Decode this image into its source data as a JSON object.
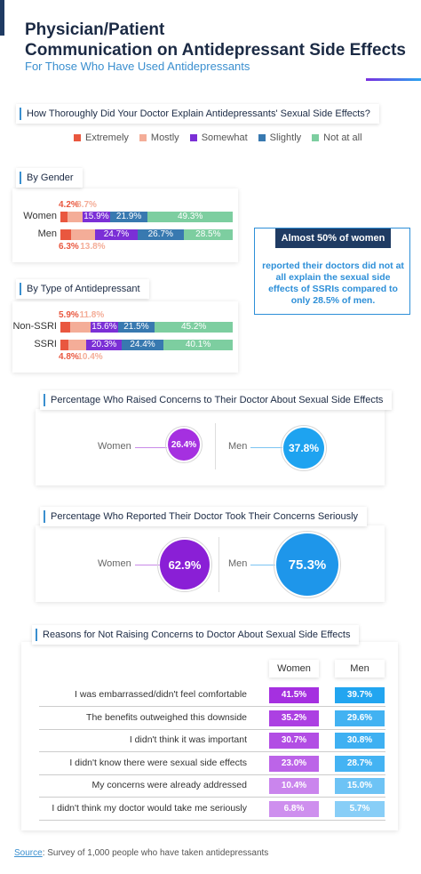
{
  "header": {
    "title_line1": "Physician/Patient",
    "title_line2": "Communication on Antidepressant Side Effects",
    "subtitle": "For Those Who Have Used Antidepressants"
  },
  "colors": {
    "extremely": "#e9573f",
    "mostly": "#f4ad98",
    "somewhat": "#7b2fd6",
    "slightly": "#3879b0",
    "not_at_all": "#7dcea0",
    "women": "#a530e0",
    "men": "#1ea3f0"
  },
  "section1": {
    "label": "How Thoroughly Did Your Doctor Explain Antidepressants' Sexual Side Effects?"
  },
  "legend": [
    "Extremely",
    "Mostly",
    "Somewhat",
    "Slightly",
    "Not at all"
  ],
  "by_gender_label": "By Gender",
  "by_type_label": "By Type of Antidepressant",
  "callout": {
    "head": "Almost 50% of women",
    "body": "reported their doctors did not at all explain the sexual side effects of SSRIs compared to only 28.5% of men."
  },
  "raised": {
    "label": "Percentage Who Raised Concerns to Their Doctor About Sexual Side Effects",
    "women_label": "Women",
    "men_label": "Men",
    "women_value": "26.4%",
    "men_value": "37.8%"
  },
  "serious": {
    "label": "Percentage Who Reported Their Doctor Took Their Concerns Seriously",
    "women_label": "Women",
    "men_label": "Men",
    "women_value": "62.9%",
    "men_value": "75.3%"
  },
  "reasons": {
    "label": "Reasons for Not Raising Concerns to Doctor About Sexual Side Effects",
    "women_head": "Women",
    "men_head": "Men",
    "rows": [
      {
        "reason": "I was embarrassed/didn't feel comfortable",
        "women": "41.5%",
        "men": "39.7%"
      },
      {
        "reason": "The benefits outweighed this downside",
        "women": "35.2%",
        "men": "29.6%"
      },
      {
        "reason": "I didn't think it was important",
        "women": "30.7%",
        "men": "30.8%"
      },
      {
        "reason": "I didn't know there were sexual side effects",
        "women": "23.0%",
        "men": "28.7%"
      },
      {
        "reason": "My concerns were already addressed",
        "women": "10.4%",
        "men": "15.0%"
      },
      {
        "reason": "I didn't think my doctor would take me seriously",
        "women": "6.8%",
        "men": "5.7%"
      }
    ]
  },
  "source": {
    "label": "Source",
    "text": ": Survey of 1,000 people who have taken antidepressants"
  },
  "chart_data": [
    {
      "type": "bar",
      "title": "By Gender",
      "stacked": true,
      "categories": [
        "Women",
        "Men"
      ],
      "series": [
        {
          "name": "Extremely",
          "values": [
            4.2,
            6.3
          ]
        },
        {
          "name": "Mostly",
          "values": [
            8.7,
            13.8
          ]
        },
        {
          "name": "Somewhat",
          "values": [
            15.9,
            24.7
          ]
        },
        {
          "name": "Slightly",
          "values": [
            21.9,
            26.7
          ]
        },
        {
          "name": "Not at all",
          "values": [
            49.3,
            28.5
          ]
        }
      ]
    },
    {
      "type": "bar",
      "title": "By Type of Antidepressant",
      "stacked": true,
      "categories": [
        "Non-SSRI",
        "SSRI"
      ],
      "series": [
        {
          "name": "Extremely",
          "values": [
            5.9,
            4.8
          ]
        },
        {
          "name": "Mostly",
          "values": [
            11.8,
            10.4
          ]
        },
        {
          "name": "Somewhat",
          "values": [
            15.6,
            20.3
          ]
        },
        {
          "name": "Slightly",
          "values": [
            21.5,
            24.4
          ]
        },
        {
          "name": "Not at all",
          "values": [
            45.2,
            40.1
          ]
        }
      ]
    }
  ]
}
